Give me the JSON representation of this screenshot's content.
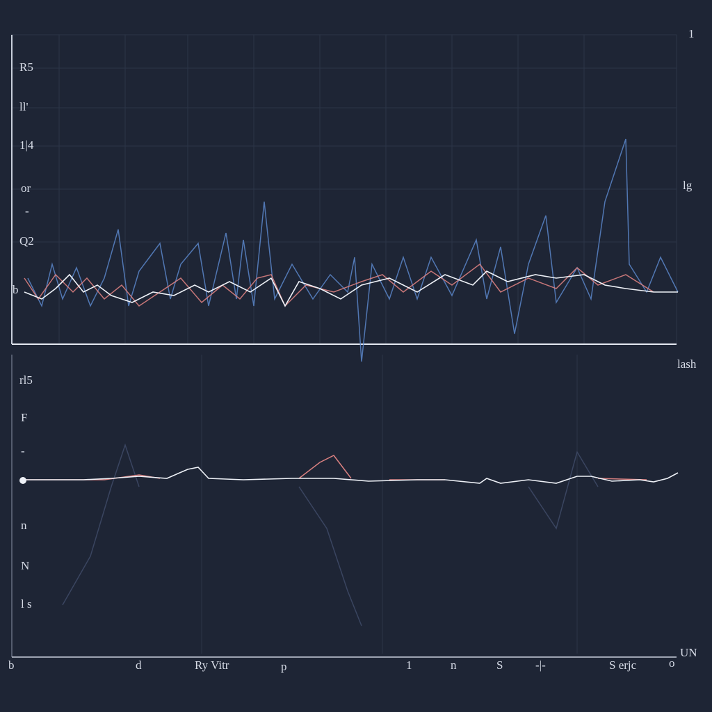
{
  "top_panel": {
    "left_labels": [
      "R5",
      "ll'",
      "1|4",
      "or",
      "-",
      "Q2",
      "b"
    ],
    "right_labels": [
      "1",
      "lg",
      "lash"
    ]
  },
  "bottom_panel": {
    "left_labels": [
      "rl5",
      "F",
      "-",
      "n",
      "N",
      "l s"
    ],
    "x_labels": [
      "b",
      "d",
      "Ry Vitr",
      "p",
      "1",
      "n",
      "S",
      "-|-",
      "S erjc",
      "o"
    ],
    "corner_label": "UN"
  }
}
